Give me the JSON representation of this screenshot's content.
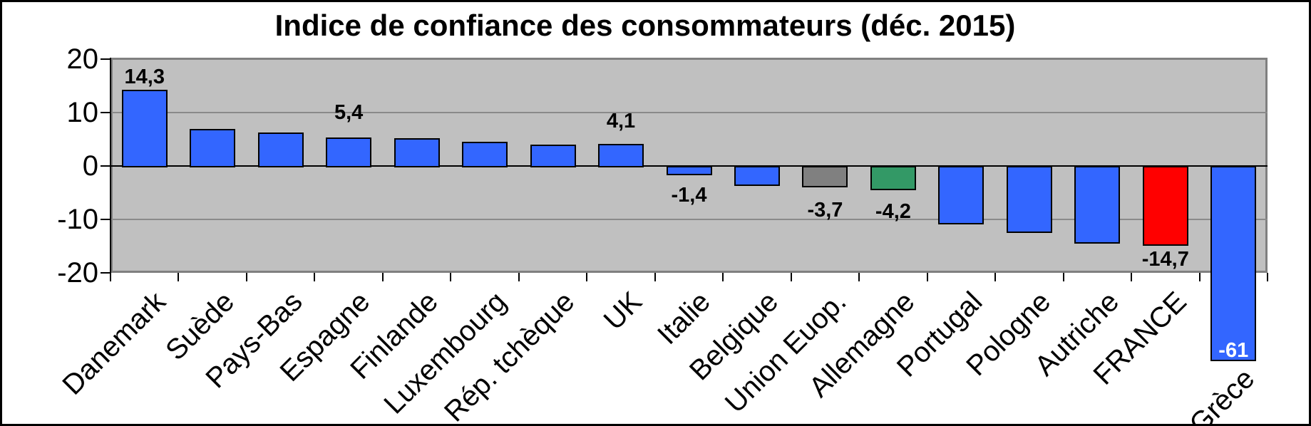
{
  "chart_data": {
    "type": "bar",
    "title": "Indice de confiance des consommateurs (déc. 2015)",
    "categories": [
      "Danemark",
      "Suède",
      "Pays-Bas",
      "Espagne",
      "Finlande",
      "Luxembourg",
      "Rép. tchèque",
      "UK",
      "Italie",
      "Belgique",
      "Union Euop.",
      "Allemagne",
      "Portugal",
      "Pologne",
      "Autriche",
      "FRANCE",
      "Grèce"
    ],
    "values": [
      14.3,
      7.0,
      6.3,
      5.4,
      5.2,
      4.6,
      4.0,
      4.1,
      -1.4,
      -3.4,
      -3.7,
      -4.2,
      -10.6,
      -12.3,
      -14.3,
      -14.7,
      -61
    ],
    "data_labels": [
      "14,3",
      "",
      "",
      "5,4",
      "",
      "",
      "",
      "4,1",
      "-1,4",
      "",
      "-3,7",
      "-4,2",
      "",
      "",
      "",
      "-14,7",
      "-61"
    ],
    "bar_colors": [
      "#3366ff",
      "#3366ff",
      "#3366ff",
      "#3366ff",
      "#3366ff",
      "#3366ff",
      "#3366ff",
      "#3366ff",
      "#3366ff",
      "#3366ff",
      "#808080",
      "#339966",
      "#3366ff",
      "#3366ff",
      "#3366ff",
      "#ff0000",
      "#3366ff"
    ],
    "ylim": [
      -20,
      20
    ],
    "yticks": [
      20,
      10,
      0,
      -10,
      -20
    ],
    "ytick_labels": [
      "20",
      "10",
      "0",
      "-10",
      "-20"
    ],
    "xlabel": "",
    "ylabel": "",
    "grid": "horizontal",
    "legend_position": "none",
    "plot_background": "#c0c0c0",
    "gridline_color": "#8a8a8a",
    "inside_label_color": "#ffffff"
  }
}
